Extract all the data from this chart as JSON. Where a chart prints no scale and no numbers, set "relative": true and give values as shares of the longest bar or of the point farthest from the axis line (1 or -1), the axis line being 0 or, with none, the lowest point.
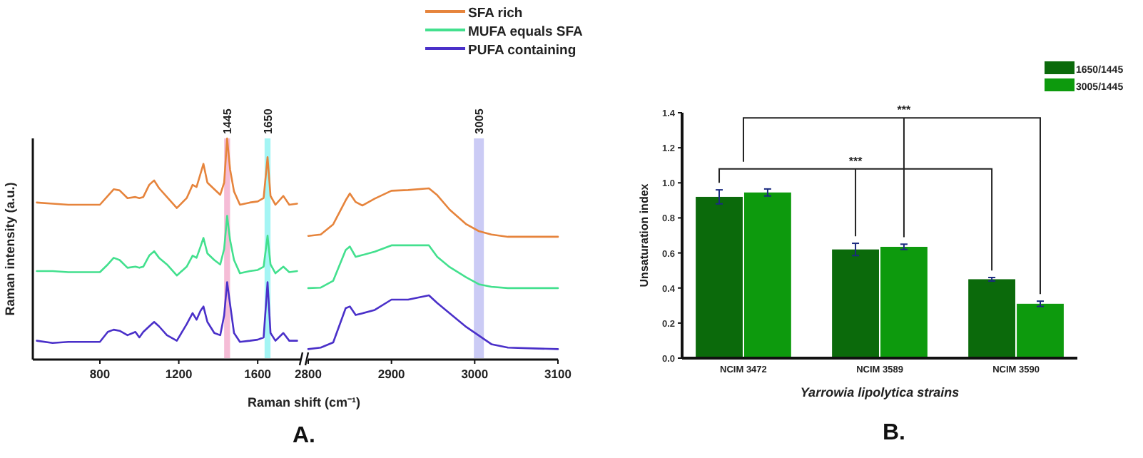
{
  "chart_data": [
    {
      "type": "line",
      "relative": true,
      "ylabel": "Raman intensity (a.u.)",
      "xlim": [
        460,
        1820
      ],
      "xticks": [
        800,
        1200,
        1600
      ],
      "legend": "top",
      "annotations": [
        "A."
      ],
      "x": [
        480,
        560,
        640,
        720,
        800,
        840,
        870,
        900,
        940,
        980,
        1000,
        1020,
        1050,
        1075,
        1100,
        1140,
        1190,
        1240,
        1270,
        1290,
        1310,
        1325,
        1345,
        1380,
        1410,
        1430,
        1445,
        1460,
        1480,
        1510,
        1560,
        1600,
        1630,
        1650,
        1665,
        1690,
        1730,
        1760,
        1800
      ],
      "bands": [
        {
          "axis": "x",
          "from": 1430,
          "to": 1460,
          "label": "1445",
          "color": "#f2a6c8"
        },
        {
          "axis": "x",
          "from": 1635,
          "to": 1665,
          "label": "1650",
          "color": "#86f2f0"
        }
      ],
      "series": [
        {
          "name": "SFA rich",
          "color": "#e6843c",
          "values": [
            0.71,
            0.705,
            0.7,
            0.7,
            0.7,
            0.74,
            0.77,
            0.765,
            0.73,
            0.735,
            0.73,
            0.735,
            0.79,
            0.81,
            0.775,
            0.735,
            0.685,
            0.73,
            0.79,
            0.78,
            0.84,
            0.885,
            0.8,
            0.77,
            0.745,
            0.8,
            1,
            0.86,
            0.76,
            0.7,
            0.71,
            0.715,
            0.73,
            0.915,
            0.74,
            0.7,
            0.74,
            0.7,
            0.705
          ]
        },
        {
          "name": "MUFA equals SFA",
          "color": "#43e08e",
          "values": [
            0.4,
            0.4,
            0.395,
            0.395,
            0.395,
            0.43,
            0.46,
            0.45,
            0.415,
            0.42,
            0.415,
            0.42,
            0.47,
            0.49,
            0.46,
            0.43,
            0.38,
            0.42,
            0.47,
            0.46,
            0.51,
            0.55,
            0.48,
            0.45,
            0.43,
            0.5,
            0.65,
            0.54,
            0.45,
            0.39,
            0.4,
            0.405,
            0.42,
            0.56,
            0.43,
            0.39,
            0.42,
            0.395,
            0.4
          ]
        },
        {
          "name": "PUFA containing",
          "color": "#4a30c9",
          "values": [
            0.085,
            0.075,
            0.08,
            0.08,
            0.08,
            0.125,
            0.135,
            0.13,
            0.11,
            0.125,
            0.1,
            0.125,
            0.15,
            0.17,
            0.15,
            0.11,
            0.085,
            0.16,
            0.21,
            0.18,
            0.22,
            0.24,
            0.17,
            0.12,
            0.11,
            0.2,
            0.35,
            0.25,
            0.12,
            0.08,
            0.085,
            0.09,
            0.1,
            0.35,
            0.12,
            0.085,
            0.12,
            0.085,
            0.085
          ]
        }
      ]
    },
    {
      "type": "line",
      "relative": true,
      "xlabel": "Raman shift (cm⁻¹)",
      "xlim": [
        2800,
        3100
      ],
      "xticks": [
        2800,
        2900,
        3000,
        3100
      ],
      "x": [
        2800,
        2815,
        2830,
        2845,
        2850,
        2857,
        2865,
        2880,
        2900,
        2920,
        2945,
        2955,
        2970,
        2990,
        3005,
        3020,
        3040,
        3070,
        3100
      ],
      "bands": [
        {
          "axis": "x",
          "from": 2999,
          "to": 3011,
          "label": "3005",
          "color": "#b9b9f2"
        }
      ],
      "series": [
        {
          "color": "#e6843c",
          "values": [
            0.722,
            0.73,
            0.79,
            0.93,
            0.97,
            0.92,
            0.9,
            0.94,
            0.986,
            0.99,
            1,
            0.96,
            0.875,
            0.79,
            0.75,
            0.73,
            0.717,
            0.717,
            0.717
          ]
        },
        {
          "color": "#43e08e",
          "values": [
            0.417,
            0.42,
            0.46,
            0.64,
            0.66,
            0.6,
            0.61,
            0.63,
            0.667,
            0.667,
            0.667,
            0.6,
            0.54,
            0.48,
            0.44,
            0.425,
            0.417,
            0.417,
            0.417
          ]
        },
        {
          "color": "#4a30c9",
          "values": [
            0.061,
            0.07,
            0.1,
            0.3,
            0.31,
            0.26,
            0.27,
            0.29,
            0.35,
            0.35,
            0.375,
            0.33,
            0.27,
            0.19,
            0.14,
            0.09,
            0.07,
            0.065,
            0.061
          ]
        }
      ]
    },
    {
      "type": "bar",
      "ylabel": "Unsaturation index",
      "xlabel": "Yarrowia lipolytica strains",
      "categories": [
        "NCIM 3472",
        "NCIM 3589",
        "NCIM 3590"
      ],
      "ylim": [
        0,
        1.4
      ],
      "yticks": [
        {
          "value": 0,
          "label": "0.0"
        },
        {
          "value": 0.2,
          "label": "0.2"
        },
        {
          "value": 0.4,
          "label": "0.4"
        },
        {
          "value": 0.6,
          "label": "0.6"
        },
        {
          "value": 0.8,
          "label": "0.8"
        },
        {
          "value": 1,
          "label": "1.0"
        },
        {
          "value": 1.2,
          "label": "1.2"
        },
        {
          "value": 1.4,
          "label": "1.4"
        }
      ],
      "legend": "top right",
      "annotations": [
        "***",
        "***",
        "B."
      ],
      "series": [
        {
          "name": "1650/1445",
          "color": "#0b6a0b",
          "values": [
            0.92,
            0.62,
            0.45
          ],
          "errors": [
            0.04,
            0.035,
            0.01
          ]
        },
        {
          "name": "3005/1445",
          "color": "#0d9a0d",
          "values": [
            0.945,
            0.635,
            0.31
          ],
          "errors": [
            0.02,
            0.015,
            0.015
          ]
        }
      ]
    }
  ]
}
